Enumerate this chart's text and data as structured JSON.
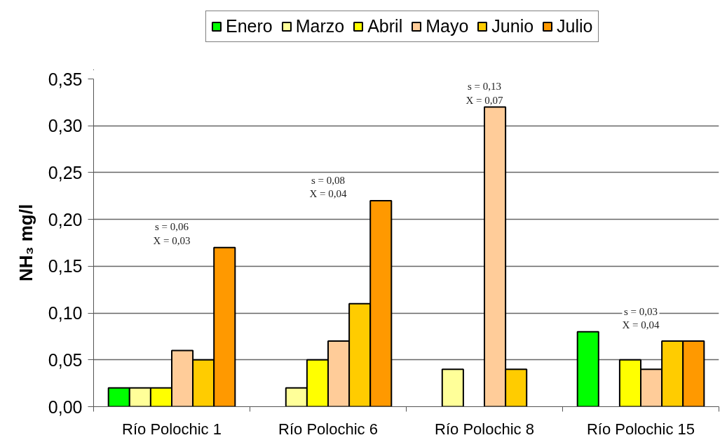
{
  "chart_data": {
    "type": "bar",
    "ylabel": "NH₃ mg/l",
    "categories": [
      "Río Polochic 1",
      "Río Polochic 6",
      "Río Polochic 8",
      "Río Polochic 15"
    ],
    "series": [
      {
        "name": "Enero",
        "color": "#00ff00",
        "values": [
          0.02,
          null,
          null,
          0.08
        ]
      },
      {
        "name": "Marzo",
        "color": "#ffff99",
        "values": [
          0.02,
          0.02,
          0.04,
          null
        ]
      },
      {
        "name": "Abril",
        "color": "#ffff00",
        "values": [
          0.02,
          0.05,
          null,
          0.05
        ]
      },
      {
        "name": "Mayo",
        "color": "#ffcc99",
        "values": [
          0.06,
          0.07,
          0.32,
          0.04
        ]
      },
      {
        "name": "Junio",
        "color": "#ffcc00",
        "values": [
          0.05,
          0.11,
          0.04,
          0.07
        ]
      },
      {
        "name": "Julio",
        "color": "#ff9900",
        "values": [
          0.17,
          0.22,
          null,
          0.07
        ]
      }
    ],
    "ylim": [
      0,
      0.35
    ],
    "yticks": [
      {
        "value": 0,
        "label": "0,00"
      },
      {
        "value": 0.05,
        "label": "0,05"
      },
      {
        "value": 0.1,
        "label": "0,10"
      },
      {
        "value": 0.15,
        "label": "0,15"
      },
      {
        "value": 0.2,
        "label": "0,20"
      },
      {
        "value": 0.25,
        "label": "0,25"
      },
      {
        "value": 0.3,
        "label": "0,30"
      },
      {
        "value": 0.35,
        "label": "0,35"
      }
    ],
    "grid": "y",
    "legend": "top",
    "annotations": [
      "s = 0,06\nX = 0,03",
      "s = 0,08\nX = 0,04",
      "s = 0,13\nX = 0,07",
      "s = 0,03\nX = 0,04"
    ]
  }
}
